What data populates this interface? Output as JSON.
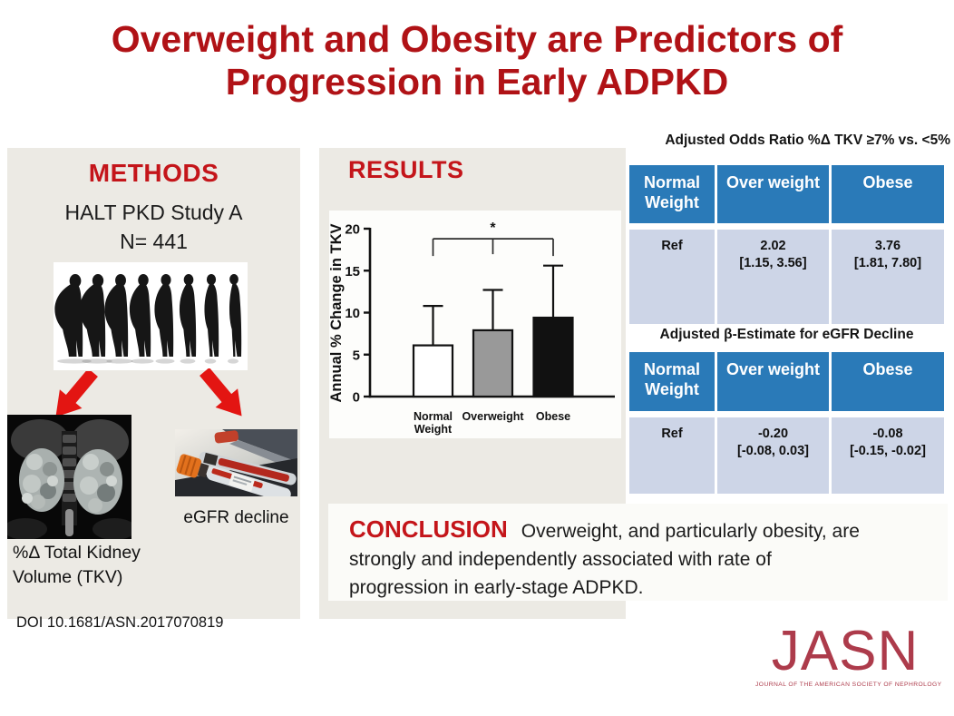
{
  "title": {
    "lines": [
      "Overweight and Obesity are Predictors of",
      "Progression in Early ADPKD"
    ]
  },
  "methods": {
    "heading": "METHODS",
    "study_name": "HALT PKD Study A",
    "sample_size": "N= 441",
    "silhouette_figure_count": 8,
    "tkv_image_label": "%Δ Total Kidney Volume (TKV)",
    "egfr_image_label": "eGFR decline"
  },
  "results": {
    "heading": "RESULTS"
  },
  "chart_data": {
    "type": "bar",
    "title": "",
    "xlabel": "",
    "ylabel": "Annual % Change in TKV",
    "categories": [
      "Normal Weight",
      "Overweight",
      "Obese"
    ],
    "values": [
      6.1,
      7.9,
      9.4
    ],
    "error_top": [
      10.8,
      12.7,
      15.6
    ],
    "ylim": [
      0,
      20
    ],
    "yticks": [
      0,
      5,
      10,
      15,
      20
    ],
    "bar_colors": [
      "#ffffff",
      "#999999",
      "#111111"
    ],
    "grid": false,
    "legend": null,
    "significance": {
      "label": "*",
      "from": "Normal Weight",
      "to": "Obese",
      "bracket_y": 18.8
    }
  },
  "tables": [
    {
      "caption": "Adjusted Odds Ratio %Δ TKV ≥7% vs. <5%",
      "headers": [
        "Normal Weight",
        "Over weight",
        "Obese"
      ],
      "cells": [
        [
          "Ref"
        ],
        [
          "2.02",
          "[1.15, 3.56]"
        ],
        [
          "3.76",
          "[1.81, 7.80]"
        ]
      ]
    },
    {
      "caption": "Adjusted β-Estimate for eGFR Decline",
      "headers": [
        "Normal Weight",
        "Over weight",
        "Obese"
      ],
      "cells": [
        [
          "Ref"
        ],
        [
          "-0.20",
          "[-0.08, 0.03]"
        ],
        [
          "-0.08",
          "[-0.15, -0.02]"
        ]
      ]
    }
  ],
  "conclusion": {
    "label": "CONCLUSION",
    "lines": [
      "Overweight, and particularly obesity, are",
      "strongly and independently associated with rate of",
      "progression in early-stage ADPKD."
    ]
  },
  "footer": {
    "doi": "DOI 10.1681/ASN.2017070819",
    "logo": "JASN",
    "logo_subtitle": "JOURNAL OF THE AMERICAN SOCIETY OF NEPHROLOGY"
  },
  "colors": {
    "title_red": "#B01216",
    "heading_red": "#C4151A",
    "arrow_red": "#E31512",
    "jasn_red": "#AD3B4B",
    "table_header_blue": "#2A7AB8",
    "table_row_blue": "#CDD5E7",
    "panel_beige": "#ECEAE4"
  }
}
